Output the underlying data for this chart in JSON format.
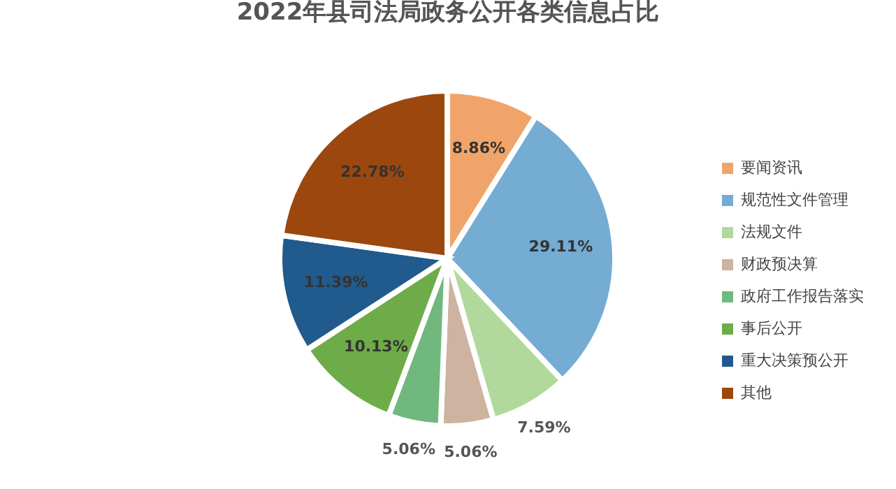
{
  "chart_data": {
    "type": "pie",
    "title": "2022年县司法局政务公开各类信息占比",
    "categories": [
      "要闻资讯",
      "规范性文件管理",
      "法规文件",
      "财政预决算",
      "政府工作报告落实",
      "事后公开",
      "重大决策预公开",
      "其他"
    ],
    "values": [
      8.86,
      29.11,
      7.59,
      5.06,
      5.06,
      10.13,
      11.39,
      22.78
    ],
    "value_labels": [
      "8.86%",
      "29.11%",
      "7.59%",
      "5.06%",
      "5.06%",
      "10.13%",
      "11.39%",
      "22.78%"
    ],
    "colors": [
      "#f0a469",
      "#74acd3",
      "#b0d99b",
      "#cdb3a0",
      "#71b87f",
      "#6dac48",
      "#215a8c",
      "#9c470e"
    ],
    "legend": "right"
  }
}
